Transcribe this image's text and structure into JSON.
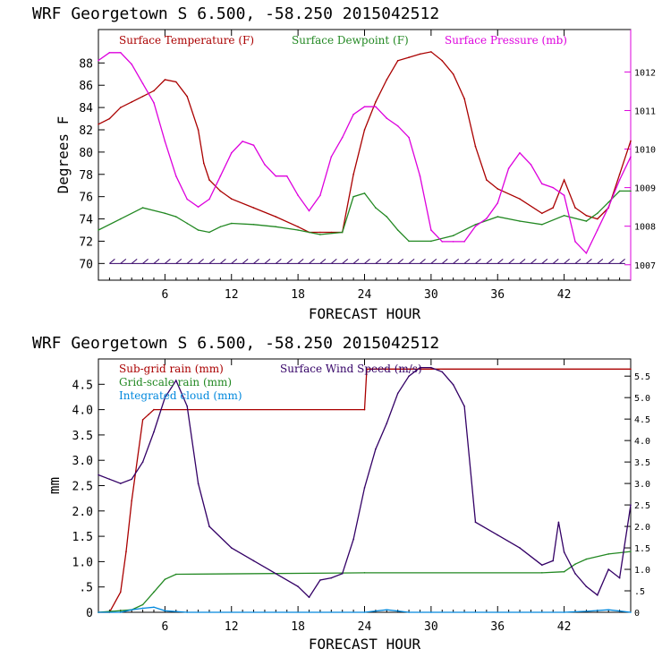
{
  "chart_data": [
    {
      "type": "line",
      "title": "WRF   Georgetown S   6.500, -58.250  2015042512",
      "xlabel": "FORECAST HOUR",
      "ylabel": "Degrees F",
      "xlim": [
        0,
        48
      ],
      "ylim": [
        68.5,
        91
      ],
      "y2lim": [
        1006.6,
        1013.1
      ],
      "x_ticks": [
        6,
        12,
        18,
        24,
        30,
        36,
        42
      ],
      "y_ticks": [
        70,
        72,
        74,
        76,
        78,
        80,
        82,
        84,
        86,
        88
      ],
      "y2_ticks": [
        1007,
        1008,
        1009,
        1010,
        1011,
        1012
      ],
      "legend_position": "top-left",
      "series": [
        {
          "name": "Surface Temperature (F)",
          "axis": "left",
          "color": "#aa0000",
          "x": [
            0,
            1,
            2,
            3,
            4,
            5,
            6,
            7,
            8,
            9,
            9.5,
            10,
            11,
            12,
            14,
            16,
            18,
            19,
            20,
            21,
            22,
            23,
            24,
            25,
            26,
            27,
            28,
            29,
            30,
            31,
            32,
            33,
            34,
            35,
            36,
            38,
            40,
            41,
            42,
            43,
            44,
            45,
            46,
            47,
            48
          ],
          "values": [
            82.5,
            83,
            84,
            84.5,
            85,
            85.5,
            86.5,
            86.3,
            85,
            82,
            79,
            77.5,
            76.5,
            75.8,
            75,
            74.2,
            73.3,
            72.8,
            72.8,
            72.8,
            72.8,
            78,
            82,
            84.5,
            86.5,
            88.2,
            88.5,
            88.8,
            89,
            88.2,
            87,
            84.8,
            80.5,
            77.5,
            76.7,
            75.8,
            74.5,
            75,
            77.5,
            75,
            74.3,
            74,
            75,
            78,
            81
          ]
        },
        {
          "name": "Surface Dewpoint (F)",
          "axis": "left",
          "color": "#228822",
          "x": [
            0,
            2,
            4,
            6,
            7,
            8,
            9,
            10,
            11,
            12,
            14,
            16,
            18,
            20,
            22,
            23,
            24,
            25,
            26,
            27,
            28,
            30,
            32,
            34,
            36,
            38,
            40,
            42,
            44,
            45,
            46,
            47,
            48
          ],
          "values": [
            73,
            74,
            75,
            74.5,
            74.2,
            73.6,
            73,
            72.8,
            73.3,
            73.6,
            73.5,
            73.3,
            73,
            72.6,
            72.8,
            76,
            76.3,
            75,
            74.2,
            73,
            72,
            72,
            72.5,
            73.5,
            74.2,
            73.8,
            73.5,
            74.3,
            73.8,
            74.5,
            75.5,
            76.5,
            76.5
          ]
        },
        {
          "name": "Surface Pressure (mb)",
          "axis": "right",
          "color": "#dd00dd",
          "x": [
            0,
            1,
            2,
            3,
            4,
            5,
            6,
            7,
            8,
            9,
            10,
            11,
            12,
            13,
            14,
            15,
            16,
            17,
            18,
            19,
            20,
            21,
            22,
            23,
            24,
            25,
            26,
            27,
            28,
            29,
            30,
            31,
            32,
            33,
            34,
            35,
            36,
            37,
            38,
            39,
            40,
            41,
            42,
            43,
            44,
            45,
            46,
            47,
            48
          ],
          "values": [
            1012.3,
            1012.5,
            1012.5,
            1012.2,
            1011.7,
            1011.2,
            1010.2,
            1009.3,
            1008.7,
            1008.5,
            1008.7,
            1009.3,
            1009.9,
            1010.2,
            1010.1,
            1009.6,
            1009.3,
            1009.3,
            1008.8,
            1008.4,
            1008.8,
            1009.8,
            1010.3,
            1010.9,
            1011.1,
            1011.1,
            1010.8,
            1010.6,
            1010.3,
            1009.3,
            1007.9,
            1007.6,
            1007.6,
            1007.6,
            1008.0,
            1008.2,
            1008.6,
            1009.5,
            1009.9,
            1009.6,
            1009.1,
            1009.0,
            1008.8,
            1007.6,
            1007.3,
            1007.9,
            1008.5,
            1009.2,
            1009.8
          ]
        }
      ],
      "legend": [
        {
          "label": "Surface Temperature (F)",
          "color": "#aa0000"
        },
        {
          "label": "Surface Dewpoint (F)",
          "color": "#228822"
        },
        {
          "label": "Surface Pressure (mb)",
          "color": "#dd00dd"
        }
      ]
    },
    {
      "type": "line",
      "title": "WRF   Georgetown S   6.500, -58.250  2015042512",
      "xlabel": "FORECAST HOUR",
      "ylabel": "mm",
      "xlim": [
        0,
        48
      ],
      "ylim": [
        0,
        5
      ],
      "y2lim": [
        0,
        5.9
      ],
      "x_ticks": [
        6,
        12,
        18,
        24,
        30,
        36,
        42
      ],
      "y_ticks": [
        0,
        0.5,
        1.0,
        1.5,
        2.0,
        2.5,
        3.0,
        3.5,
        4.0,
        4.5
      ],
      "y_tick_labels": [
        "0",
        ".5",
        "1.0",
        "1.5",
        "2.0",
        "2.5",
        "3.0",
        "3.5",
        "4.0",
        "4.5"
      ],
      "y2_ticks": [
        0,
        0.5,
        1.0,
        1.5,
        2.0,
        2.5,
        3.0,
        3.5,
        4.0,
        4.5,
        5.0,
        5.5
      ],
      "y2_tick_labels": [
        "0",
        ".5",
        "1.0",
        "1.5",
        "2.0",
        "2.5",
        "3.0",
        "3.5",
        "4.0",
        "4.5",
        "5.0",
        "5.5"
      ],
      "legend_position": "top-left",
      "series": [
        {
          "name": "Sub-grid rain (mm)",
          "axis": "left",
          "color": "#aa0000",
          "x": [
            0,
            1,
            2,
            2.5,
            3,
            4,
            4.5,
            5,
            24,
            24.2,
            48
          ],
          "values": [
            0,
            0,
            0.4,
            1.2,
            2.2,
            3.8,
            3.9,
            4.0,
            4.0,
            4.8,
            4.8
          ]
        },
        {
          "name": "Grid-scale rain (mm)",
          "axis": "left",
          "color": "#228822",
          "x": [
            0,
            3,
            4,
            5,
            6,
            7,
            24,
            40,
            42,
            43,
            44,
            46,
            48
          ],
          "values": [
            0,
            0.05,
            0.15,
            0.4,
            0.65,
            0.75,
            0.78,
            0.78,
            0.8,
            0.95,
            1.05,
            1.15,
            1.2
          ]
        },
        {
          "name": "Integrated cloud (mm)",
          "axis": "left",
          "color": "#0088dd",
          "x": [
            0,
            2,
            3,
            4,
            5,
            6,
            8,
            24,
            26,
            28,
            30,
            42,
            44,
            46,
            48
          ],
          "values": [
            0,
            0,
            0.05,
            0.08,
            0.1,
            0.03,
            0,
            0,
            0.05,
            0,
            0,
            0,
            0.02,
            0.05,
            0
          ]
        },
        {
          "name": "Surface Wind Speed (m/s)",
          "axis": "right",
          "color": "#330066",
          "x": [
            0,
            1,
            2,
            3,
            4,
            5,
            6,
            7,
            8,
            9,
            10,
            12,
            14,
            16,
            18,
            19,
            20,
            21,
            22,
            23,
            24,
            25,
            26,
            27,
            28,
            29,
            30,
            31,
            32,
            33,
            34,
            36,
            38,
            40,
            41,
            41.5,
            42,
            43,
            44,
            45,
            46,
            47,
            48
          ],
          "values": [
            3.2,
            3.1,
            3.0,
            3.1,
            3.5,
            4.2,
            5.0,
            5.4,
            4.8,
            3.0,
            2.0,
            1.5,
            1.2,
            0.9,
            0.6,
            0.35,
            0.75,
            0.8,
            0.9,
            1.7,
            2.9,
            3.8,
            4.4,
            5.1,
            5.5,
            5.7,
            5.7,
            5.6,
            5.3,
            4.8,
            2.1,
            1.8,
            1.5,
            1.1,
            1.2,
            2.1,
            1.4,
            0.9,
            0.6,
            0.4,
            1.0,
            0.8,
            2.5
          ]
        }
      ],
      "legend": [
        {
          "label": "Sub-grid rain (mm)",
          "color": "#aa0000"
        },
        {
          "label": "Surface Wind Speed (m/s)",
          "color": "#330066"
        },
        {
          "label": "Grid-scale rain (mm)",
          "color": "#228822"
        },
        {
          "label": "Integrated cloud (mm)",
          "color": "#0088dd"
        }
      ]
    }
  ]
}
